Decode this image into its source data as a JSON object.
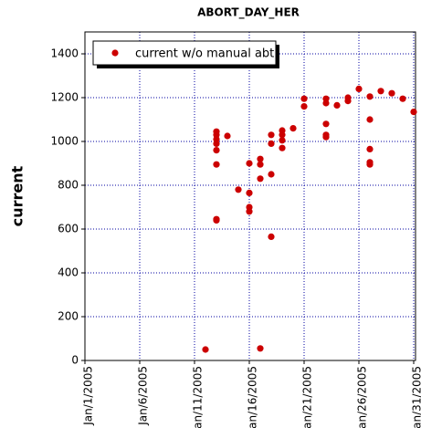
{
  "chart_data": {
    "type": "scatter",
    "title": "ABORT_DAY_HER",
    "y_label": "current",
    "series": [
      {
        "name": "current w/o manual abt",
        "color": "#cc0000",
        "x": [
          "2005-01-12",
          "2005-01-13",
          "2005-01-13",
          "2005-01-13",
          "2005-01-13",
          "2005-01-13",
          "2005-01-13",
          "2005-01-13",
          "2005-01-13",
          "2005-01-14",
          "2005-01-15",
          "2005-01-16",
          "2005-01-16",
          "2005-01-16",
          "2005-01-16",
          "2005-01-17",
          "2005-01-17",
          "2005-01-17",
          "2005-01-17",
          "2005-01-18",
          "2005-01-18",
          "2005-01-18",
          "2005-01-18",
          "2005-01-19",
          "2005-01-19",
          "2005-01-19",
          "2005-01-19",
          "2005-01-20",
          "2005-01-21",
          "2005-01-21",
          "2005-01-23",
          "2005-01-23",
          "2005-01-23",
          "2005-01-23",
          "2005-01-23",
          "2005-01-24",
          "2005-01-25",
          "2005-01-25",
          "2005-01-26",
          "2005-01-27",
          "2005-01-27",
          "2005-01-27",
          "2005-01-27",
          "2005-01-27",
          "2005-01-28",
          "2005-01-29",
          "2005-01-30",
          "2005-01-31"
        ],
        "values": [
          50,
          1045,
          1030,
          1010,
          990,
          960,
          895,
          645,
          640,
          1025,
          780,
          900,
          765,
          700,
          680,
          920,
          895,
          830,
          55,
          1030,
          990,
          850,
          565,
          1050,
          1030,
          1005,
          970,
          1060,
          1195,
          1160,
          1195,
          1175,
          1080,
          1030,
          1020,
          1165,
          1200,
          1185,
          1240,
          1205,
          1100,
          965,
          905,
          895,
          1230,
          1220,
          1195,
          1135
        ]
      }
    ],
    "xlim": [
      "2005-01-01",
      "2005-01-31"
    ],
    "xticks": [
      {
        "value": "2005-01-01",
        "label": "Jan/1/2005"
      },
      {
        "value": "2005-01-06",
        "label": "Jan/6/2005"
      },
      {
        "value": "2005-01-11",
        "label": "Jan/11/2005"
      },
      {
        "value": "2005-01-16",
        "label": "Jan/16/2005"
      },
      {
        "value": "2005-01-21",
        "label": "Jan/21/2005"
      },
      {
        "value": "2005-01-26",
        "label": "Jan/26/2005"
      },
      {
        "value": "2005-01-31",
        "label": "Jan/31/2005"
      }
    ],
    "ylim": [
      0,
      1500
    ],
    "yticks": [
      0,
      200,
      400,
      600,
      800,
      1000,
      1200,
      1400
    ],
    "grid": true,
    "legend": "upper left"
  }
}
